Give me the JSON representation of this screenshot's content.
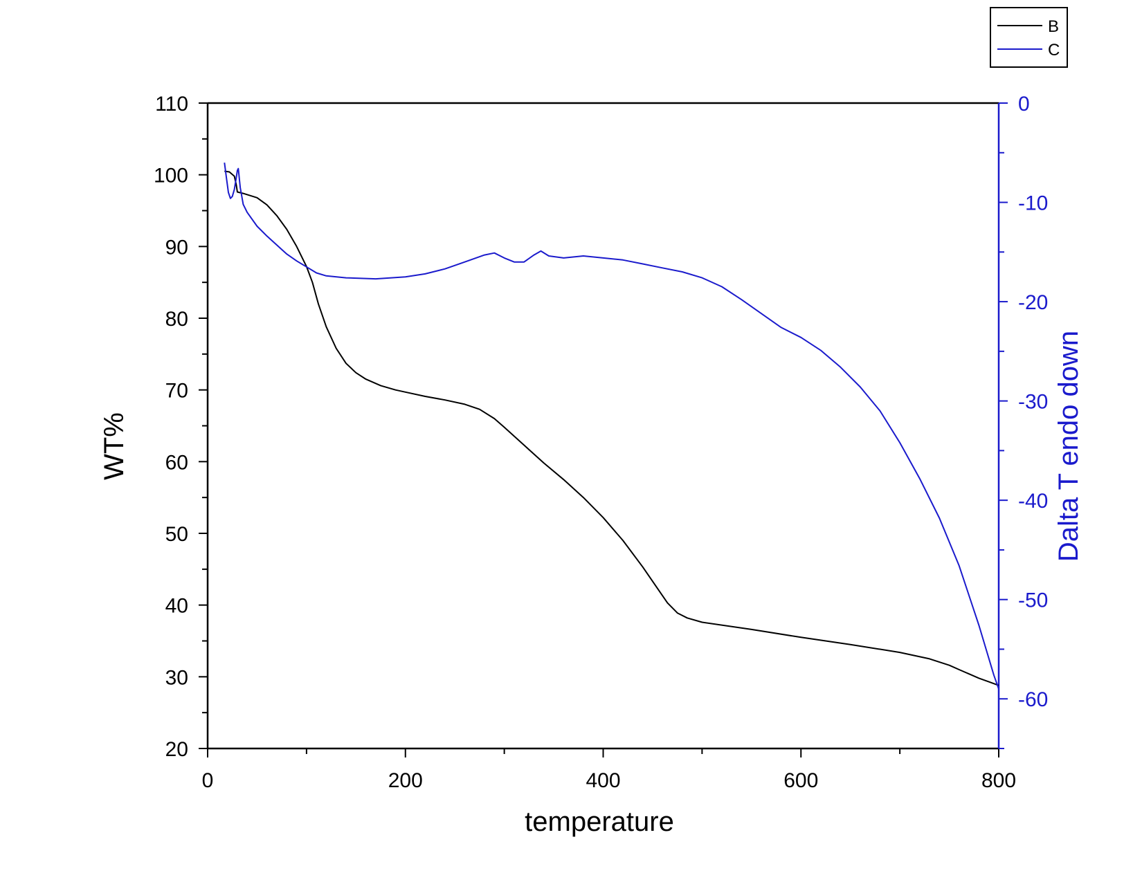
{
  "chart_data": {
    "type": "line",
    "title": "",
    "xlabel": "temperature",
    "ylabel_left": "WT%",
    "ylabel_right": "Dalta T endo down",
    "xlim": [
      0,
      800
    ],
    "ylim_left": [
      20,
      110
    ],
    "ylim_right": [
      -65,
      0
    ],
    "x_ticks": [
      0,
      200,
      400,
      600,
      800
    ],
    "y_left_ticks": [
      20,
      30,
      40,
      50,
      60,
      70,
      80,
      90,
      100,
      110
    ],
    "y_right_ticks": [
      -60,
      -50,
      -40,
      -30,
      -20,
      -10,
      0
    ],
    "grid": false,
    "legend_placement": "top-right, outside plot",
    "series": [
      {
        "name": "B",
        "axis": "left",
        "color": "#000000",
        "points": [
          [
            17,
            100.5
          ],
          [
            22,
            100.4
          ],
          [
            27,
            99.8
          ],
          [
            29,
            98.6
          ],
          [
            30,
            97.6
          ],
          [
            36,
            97.4
          ],
          [
            50,
            96.8
          ],
          [
            60,
            95.8
          ],
          [
            70,
            94.3
          ],
          [
            80,
            92.4
          ],
          [
            90,
            90.0
          ],
          [
            100,
            87.2
          ],
          [
            106,
            85.0
          ],
          [
            112,
            82.0
          ],
          [
            120,
            78.8
          ],
          [
            130,
            75.8
          ],
          [
            140,
            73.7
          ],
          [
            150,
            72.4
          ],
          [
            160,
            71.5
          ],
          [
            175,
            70.6
          ],
          [
            190,
            70.0
          ],
          [
            200,
            69.7
          ],
          [
            220,
            69.1
          ],
          [
            240,
            68.6
          ],
          [
            260,
            68.0
          ],
          [
            275,
            67.3
          ],
          [
            290,
            66.0
          ],
          [
            300,
            64.8
          ],
          [
            320,
            62.3
          ],
          [
            340,
            59.8
          ],
          [
            360,
            57.5
          ],
          [
            380,
            55.0
          ],
          [
            400,
            52.2
          ],
          [
            420,
            49.0
          ],
          [
            440,
            45.3
          ],
          [
            455,
            42.3
          ],
          [
            465,
            40.3
          ],
          [
            475,
            38.9
          ],
          [
            485,
            38.2
          ],
          [
            500,
            37.6
          ],
          [
            550,
            36.6
          ],
          [
            600,
            35.5
          ],
          [
            650,
            34.5
          ],
          [
            700,
            33.4
          ],
          [
            730,
            32.5
          ],
          [
            750,
            31.6
          ],
          [
            760,
            31.0
          ],
          [
            770,
            30.4
          ],
          [
            780,
            29.8
          ],
          [
            790,
            29.3
          ],
          [
            800,
            28.8
          ]
        ]
      },
      {
        "name": "C",
        "axis": "right",
        "color": "#1a1acc",
        "points": [
          [
            17,
            -6.0
          ],
          [
            19,
            -7.5
          ],
          [
            21,
            -9.0
          ],
          [
            23,
            -9.6
          ],
          [
            25,
            -9.4
          ],
          [
            27,
            -8.7
          ],
          [
            29,
            -7.5
          ],
          [
            30,
            -6.8
          ],
          [
            31,
            -6.6
          ],
          [
            33,
            -8.5
          ],
          [
            36,
            -10.2
          ],
          [
            40,
            -11.0
          ],
          [
            50,
            -12.4
          ],
          [
            60,
            -13.4
          ],
          [
            70,
            -14.3
          ],
          [
            80,
            -15.2
          ],
          [
            90,
            -15.9
          ],
          [
            100,
            -16.5
          ],
          [
            110,
            -17.1
          ],
          [
            120,
            -17.4
          ],
          [
            140,
            -17.6
          ],
          [
            170,
            -17.7
          ],
          [
            200,
            -17.5
          ],
          [
            220,
            -17.2
          ],
          [
            240,
            -16.7
          ],
          [
            260,
            -16.0
          ],
          [
            280,
            -15.3
          ],
          [
            290,
            -15.1
          ],
          [
            300,
            -15.6
          ],
          [
            310,
            -16.0
          ],
          [
            320,
            -16.0
          ],
          [
            330,
            -15.3
          ],
          [
            337,
            -14.9
          ],
          [
            345,
            -15.4
          ],
          [
            360,
            -15.6
          ],
          [
            380,
            -15.4
          ],
          [
            400,
            -15.6
          ],
          [
            420,
            -15.8
          ],
          [
            440,
            -16.2
          ],
          [
            460,
            -16.6
          ],
          [
            480,
            -17.0
          ],
          [
            500,
            -17.6
          ],
          [
            520,
            -18.5
          ],
          [
            540,
            -19.8
          ],
          [
            560,
            -21.2
          ],
          [
            580,
            -22.6
          ],
          [
            600,
            -23.6
          ],
          [
            620,
            -24.9
          ],
          [
            640,
            -26.6
          ],
          [
            660,
            -28.6
          ],
          [
            680,
            -31.0
          ],
          [
            700,
            -34.2
          ],
          [
            720,
            -37.8
          ],
          [
            740,
            -41.8
          ],
          [
            760,
            -46.6
          ],
          [
            780,
            -52.6
          ],
          [
            795,
            -57.6
          ],
          [
            800,
            -59.0
          ]
        ]
      }
    ]
  }
}
